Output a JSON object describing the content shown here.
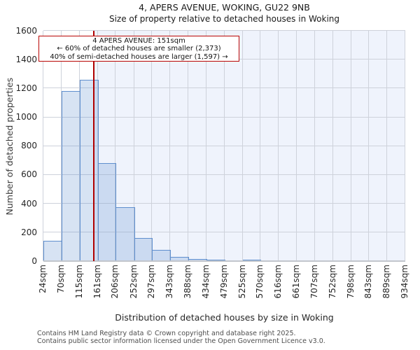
{
  "title": "4, APERS AVENUE, WOKING, GU22 9NB",
  "subtitle": "Size of property relative to detached houses in Woking",
  "annotation": {
    "line1": "4 APERS AVENUE: 151sqm",
    "line2": "← 60% of detached houses are smaller (2,373)",
    "line3": "40% of semi-detached houses are larger (1,597) →",
    "border_color": "#b90504"
  },
  "chart_data": {
    "type": "bar",
    "title": "4, APERS AVENUE, WOKING, GU22 9NB",
    "subtitle": "Size of property relative to detached houses in Woking",
    "xlabel": "Distribution of detached houses by size in Woking",
    "ylabel": "Number of detached properties",
    "x_tick_labels": [
      "24sqm",
      "70sqm",
      "115sqm",
      "161sqm",
      "206sqm",
      "252sqm",
      "297sqm",
      "343sqm",
      "388sqm",
      "434sqm",
      "479sqm",
      "525sqm",
      "570sqm",
      "616sqm",
      "661sqm",
      "707sqm",
      "752sqm",
      "798sqm",
      "843sqm",
      "889sqm",
      "934sqm"
    ],
    "bin_edges_sqm": [
      24,
      70,
      115,
      161,
      206,
      252,
      297,
      343,
      388,
      434,
      479,
      525,
      570,
      616,
      661,
      707,
      752,
      798,
      843,
      889,
      934
    ],
    "values": [
      140,
      1180,
      1260,
      680,
      375,
      160,
      80,
      28,
      15,
      12,
      0,
      8,
      0,
      0,
      0,
      0,
      0,
      0,
      0,
      0
    ],
    "ylim": [
      0,
      1600
    ],
    "yticks": [
      0,
      200,
      400,
      600,
      800,
      1000,
      1200,
      1400,
      1600
    ],
    "grid": true,
    "legend_position": "none",
    "marker_value_sqm": 151,
    "marker_color": "#b00000",
    "bar_fill": "rgba(95,143,206,0.25)",
    "bar_border": "#5f8fce",
    "shade_color": "#eff3fc",
    "grid_color": "#ced2db"
  },
  "footer": {
    "line1": "Contains HM Land Registry data © Crown copyright and database right 2025.",
    "line2": "Contains public sector information licensed under the Open Government Licence v3.0."
  }
}
